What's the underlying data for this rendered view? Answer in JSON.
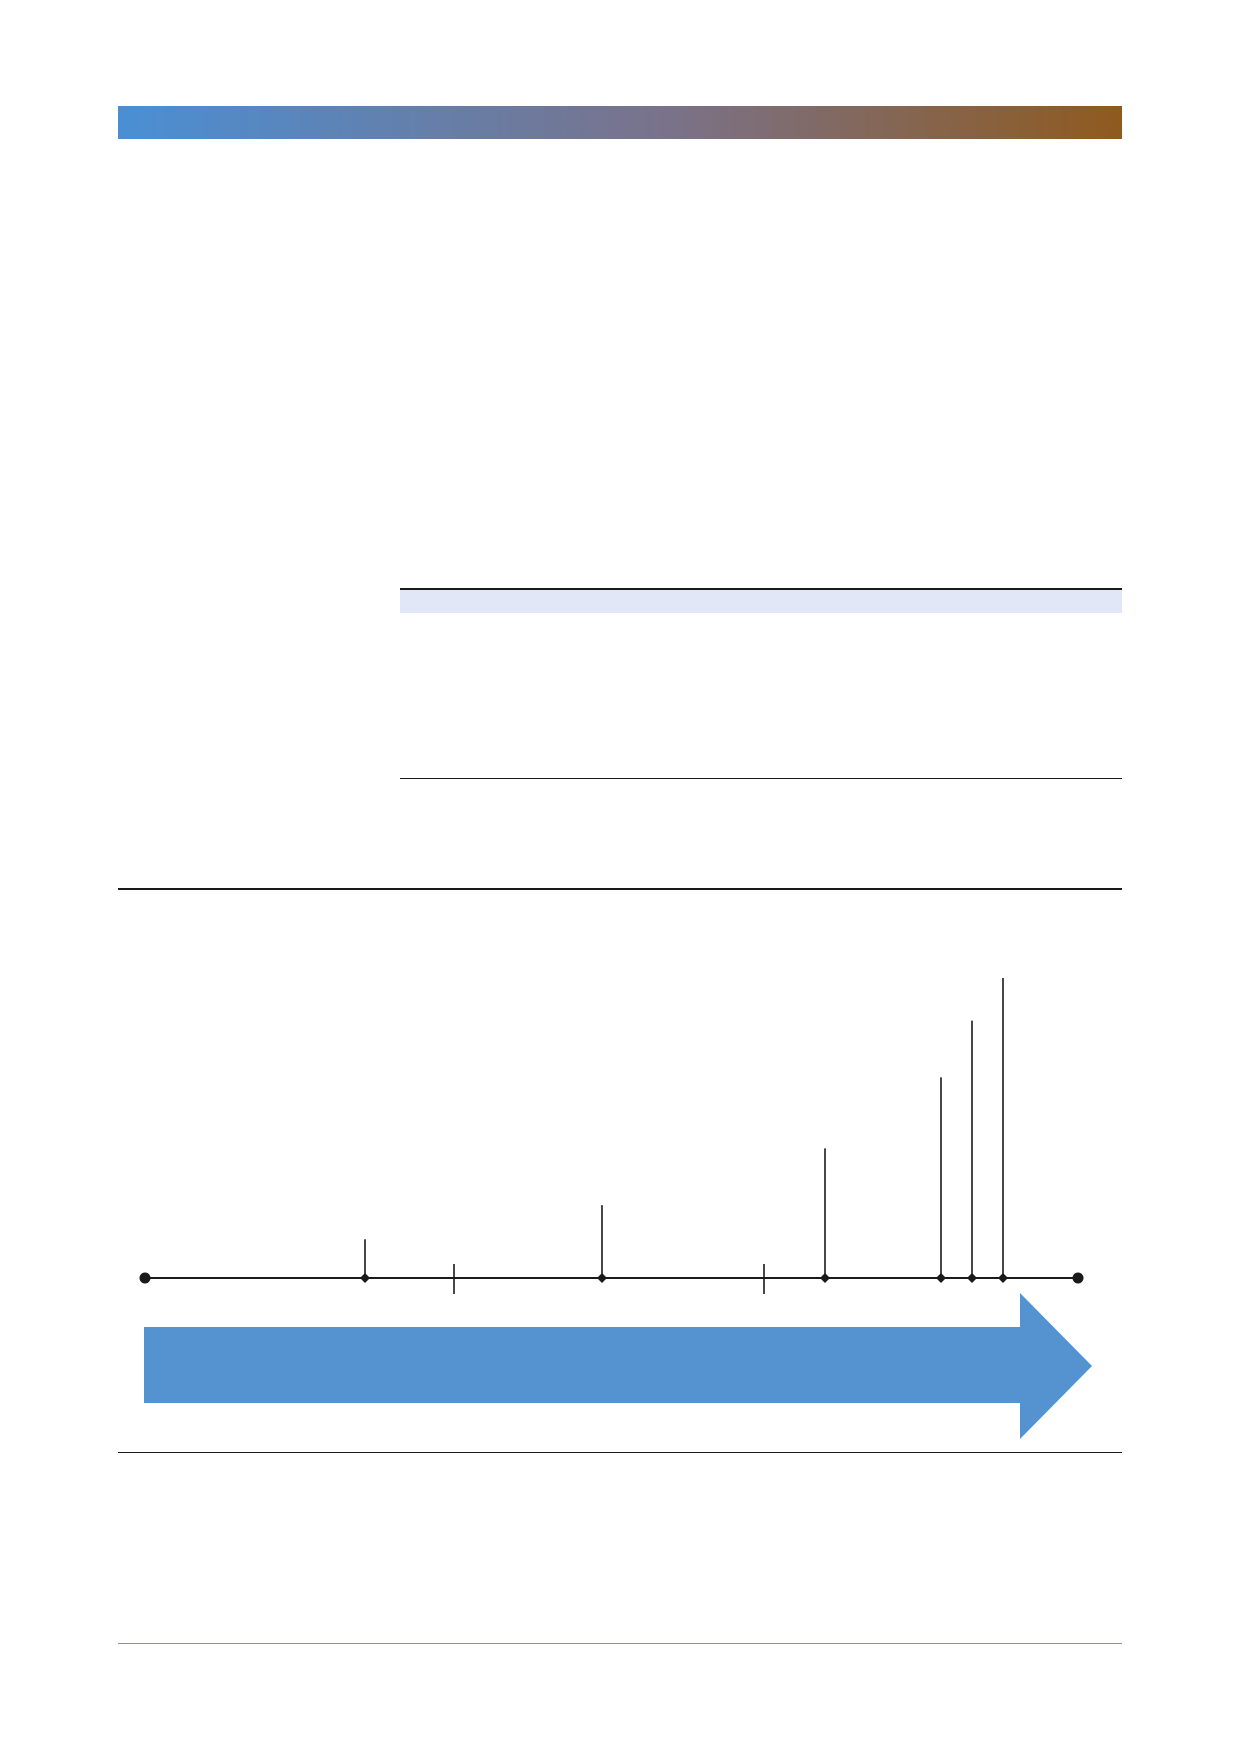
{
  "colors": {
    "header_gradient_start": "#4a8fd4",
    "header_gradient_mid": "#7a7289",
    "header_gradient_end": "#8f5a1e",
    "table_header_fill": "#e1e7f6",
    "rule": "#1a1a1a",
    "arrow_fill": "#5592d0",
    "footer_rule": "#8a8fa3"
  },
  "timeline": {
    "events": [
      {
        "marker": "diamond",
        "stem_level": 0.08
      },
      {
        "marker": "tick",
        "stem_level": 0
      },
      {
        "marker": "diamond",
        "stem_level": 0.2
      },
      {
        "marker": "tick",
        "stem_level": 0
      },
      {
        "marker": "diamond",
        "stem_level": 0.4
      },
      {
        "marker": "diamond",
        "stem_level": 0.65
      },
      {
        "marker": "diamond",
        "stem_level": 0.85
      },
      {
        "marker": "diamond",
        "stem_level": 1.0
      }
    ],
    "arrow_direction": "right"
  }
}
